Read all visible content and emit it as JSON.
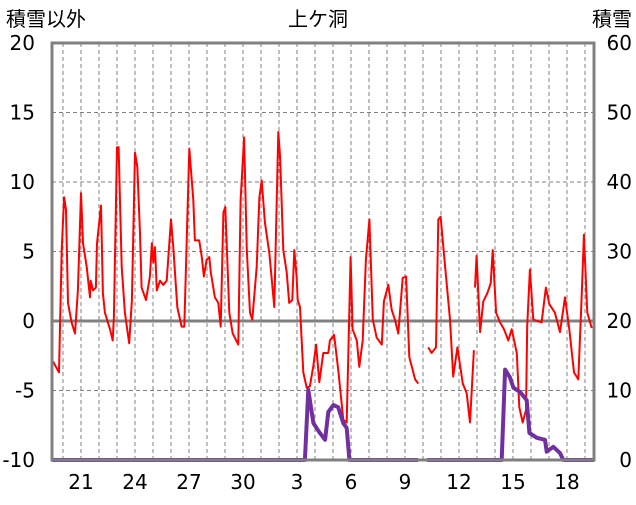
{
  "chart_data": {
    "type": "line",
    "title": "上ケ洞",
    "ylabel_left": "積雪以外",
    "ylabel_right": "積雪",
    "x_unit": "days after the 21st",
    "xlim": [
      -1.61,
      28.5
    ],
    "ylim_left": [
      -10,
      20
    ],
    "ylim_right": [
      0,
      60
    ],
    "yticks_left": [
      -10,
      -5,
      0,
      5,
      10,
      15,
      20
    ],
    "yticks_left_labels": [
      "-10",
      "-5",
      "0",
      "5",
      "10",
      "15",
      "20"
    ],
    "yticks_right": [
      0,
      10,
      20,
      30,
      40,
      50,
      60
    ],
    "yticks_right_labels": [
      "0",
      "10",
      "20",
      "30",
      "40",
      "50",
      "60"
    ],
    "xticks": [
      0,
      3,
      6,
      9,
      12,
      15,
      18,
      21,
      24,
      27
    ],
    "xtick_labels": [
      "21",
      "24",
      "27",
      "30",
      "3",
      "6",
      "9",
      "12",
      "15",
      "18"
    ],
    "grid": true,
    "series": [
      {
        "name": "temperature",
        "axis": "left",
        "color": "#ff0000",
        "points": [
          [
            -1.56,
            -2.9
          ],
          [
            -1.22,
            -3.7
          ],
          [
            -1.07,
            5.1
          ],
          [
            -0.94,
            8.9
          ],
          [
            -0.83,
            8.0
          ],
          [
            -0.72,
            1.3
          ],
          [
            -0.52,
            -0.1
          ],
          [
            -0.33,
            -0.9
          ],
          [
            -0.17,
            2.2
          ],
          [
            0,
            9.2
          ],
          [
            0.11,
            5.6
          ],
          [
            0.32,
            3.9
          ],
          [
            0.5,
            1.7
          ],
          [
            0.54,
            2.9
          ],
          [
            0.67,
            2.2
          ],
          [
            0.83,
            2.4
          ],
          [
            0.89,
            5.6
          ],
          [
            1.11,
            8.3
          ],
          [
            1.22,
            2.0
          ],
          [
            1.33,
            0.6
          ],
          [
            1.61,
            -0.6
          ],
          [
            1.76,
            -1.4
          ],
          [
            1.83,
            0.3
          ],
          [
            2.0,
            12.5
          ],
          [
            2.09,
            12.5
          ],
          [
            2.26,
            3.9
          ],
          [
            2.44,
            0.6
          ],
          [
            2.57,
            -0.6
          ],
          [
            2.68,
            -1.6
          ],
          [
            2.83,
            1.5
          ],
          [
            3.0,
            12.1
          ],
          [
            3.13,
            11.1
          ],
          [
            3.28,
            6.3
          ],
          [
            3.37,
            2.4
          ],
          [
            3.61,
            1.5
          ],
          [
            3.83,
            3.2
          ],
          [
            3.94,
            5.6
          ],
          [
            4.02,
            4.2
          ],
          [
            4.11,
            5.3
          ],
          [
            4.21,
            2.2
          ],
          [
            4.39,
            2.9
          ],
          [
            4.57,
            2.6
          ],
          [
            4.76,
            2.9
          ],
          [
            5.0,
            7.3
          ],
          [
            5.13,
            5.3
          ],
          [
            5.35,
            1.0
          ],
          [
            5.59,
            -0.4
          ],
          [
            5.74,
            -0.4
          ],
          [
            6.02,
            12.4
          ],
          [
            6.24,
            8.7
          ],
          [
            6.33,
            5.8
          ],
          [
            6.57,
            5.8
          ],
          [
            6.71,
            4.6
          ],
          [
            6.83,
            3.2
          ],
          [
            6.98,
            4.4
          ],
          [
            7.13,
            4.6
          ],
          [
            7.21,
            3.5
          ],
          [
            7.44,
            1.7
          ],
          [
            7.63,
            1.3
          ],
          [
            7.76,
            -0.4
          ],
          [
            7.91,
            7.8
          ],
          [
            8.02,
            8.2
          ],
          [
            8.24,
            0.6
          ],
          [
            8.43,
            -0.9
          ],
          [
            8.74,
            -1.7
          ],
          [
            8.87,
            8.7
          ],
          [
            9.06,
            13.2
          ],
          [
            9.21,
            5.1
          ],
          [
            9.39,
            0.6
          ],
          [
            9.52,
            0.1
          ],
          [
            9.76,
            3.9
          ],
          [
            9.91,
            8.9
          ],
          [
            10.04,
            10.1
          ],
          [
            10.22,
            7.1
          ],
          [
            10.46,
            4.9
          ],
          [
            10.74,
            1.0
          ],
          [
            10.96,
            13.6
          ],
          [
            11.06,
            11.8
          ],
          [
            11.24,
            5.1
          ],
          [
            11.43,
            3.5
          ],
          [
            11.57,
            1.3
          ],
          [
            11.74,
            1.5
          ],
          [
            11.85,
            5.1
          ],
          [
            11.98,
            3.2
          ],
          [
            12.04,
            1.5
          ],
          [
            12.17,
            1.0
          ],
          [
            12.35,
            -3.7
          ],
          [
            12.54,
            -4.8
          ],
          [
            12.72,
            -4.7
          ],
          [
            12.91,
            -3.2
          ],
          [
            13.06,
            -1.7
          ],
          [
            13.24,
            -4.4
          ],
          [
            13.46,
            -2.3
          ],
          [
            13.74,
            -2.3
          ],
          [
            13.83,
            -1.4
          ],
          [
            14.06,
            -1.0
          ],
          [
            14.29,
            -3.5
          ],
          [
            14.57,
            -7.1
          ],
          [
            14.76,
            -7.3
          ],
          [
            14.98,
            4.6
          ],
          [
            15.09,
            -0.6
          ],
          [
            15.32,
            -1.4
          ],
          [
            15.46,
            -3.3
          ],
          [
            15.65,
            -1.4
          ],
          [
            15.83,
            4.4
          ],
          [
            16.02,
            7.3
          ],
          [
            16.21,
            0.1
          ],
          [
            16.43,
            -1.2
          ],
          [
            16.71,
            -1.7
          ],
          [
            16.83,
            1.4
          ],
          [
            17.07,
            2.6
          ],
          [
            17.26,
            0.8
          ],
          [
            17.44,
            0.1
          ],
          [
            17.63,
            -0.9
          ],
          [
            17.87,
            3.1
          ],
          [
            18.06,
            3.2
          ],
          [
            18.24,
            -2.6
          ],
          [
            18.46,
            -3.7
          ],
          [
            18.56,
            -4.2
          ],
          [
            18.74,
            -4.5
          ],
          null,
          [
            19.29,
            -1.9
          ],
          [
            19.48,
            -2.3
          ],
          [
            19.72,
            -1.9
          ],
          [
            19.85,
            7.3
          ],
          [
            19.98,
            7.5
          ],
          [
            20.22,
            4.0
          ],
          [
            20.5,
            0.1
          ],
          [
            20.68,
            -4.0
          ],
          [
            20.91,
            -1.9
          ],
          [
            21.21,
            -4.5
          ],
          [
            21.43,
            -5.2
          ],
          [
            21.61,
            -7.3
          ],
          [
            21.83,
            -2.1
          ],
          null,
          [
            21.89,
            2.4
          ],
          [
            21.98,
            4.7
          ],
          [
            22.17,
            -0.8
          ],
          [
            22.35,
            1.4
          ],
          [
            22.57,
            2.0
          ],
          [
            22.76,
            2.7
          ],
          [
            22.87,
            5.1
          ],
          [
            23.06,
            0.6
          ],
          [
            23.28,
            -0.1
          ],
          [
            23.5,
            -0.6
          ],
          [
            23.74,
            -1.4
          ],
          [
            23.93,
            -0.6
          ],
          [
            24.21,
            -2.3
          ],
          [
            24.35,
            -6.2
          ],
          [
            24.54,
            -7.3
          ],
          [
            24.72,
            -6.4
          ],
          [
            24.79,
            -0.4
          ],
          [
            24.94,
            3.7
          ],
          [
            25.13,
            0.1
          ],
          [
            25.59,
            -0.1
          ],
          [
            25.83,
            2.4
          ],
          [
            26.02,
            1.2
          ],
          [
            26.33,
            0.6
          ],
          [
            26.61,
            -0.8
          ],
          [
            26.89,
            1.7
          ],
          [
            27.13,
            -0.6
          ],
          [
            27.39,
            -3.7
          ],
          [
            27.63,
            -4.2
          ],
          [
            27.82,
            2.0
          ],
          [
            27.94,
            6.2
          ],
          [
            28.13,
            0.6
          ],
          [
            28.37,
            -0.5
          ]
        ]
      },
      {
        "name": "snow depth",
        "axis": "right",
        "color": "#7030a0",
        "points": [
          [
            -1.61,
            0
          ],
          [
            12.44,
            0
          ],
          [
            12.63,
            10.1
          ],
          [
            12.91,
            5.3
          ],
          [
            13.24,
            4.0
          ],
          [
            13.56,
            2.9
          ],
          [
            13.74,
            6.9
          ],
          [
            14.02,
            7.9
          ],
          [
            14.29,
            7.6
          ],
          [
            14.57,
            5.3
          ],
          [
            14.76,
            4.6
          ],
          [
            14.91,
            0
          ],
          [
            18.72,
            0
          ],
          null,
          [
            19.22,
            0
          ],
          [
            23.37,
            0
          ],
          [
            23.56,
            13.0
          ],
          [
            23.83,
            11.9
          ],
          [
            24.02,
            10.4
          ],
          [
            24.39,
            9.8
          ],
          [
            24.76,
            8.6
          ],
          [
            24.91,
            3.9
          ],
          [
            25.32,
            3.2
          ],
          [
            25.78,
            2.9
          ],
          [
            25.87,
            1.2
          ],
          [
            26.24,
            1.9
          ],
          [
            26.61,
            1.0
          ],
          [
            26.8,
            0
          ],
          [
            28.5,
            0
          ]
        ]
      }
    ]
  }
}
